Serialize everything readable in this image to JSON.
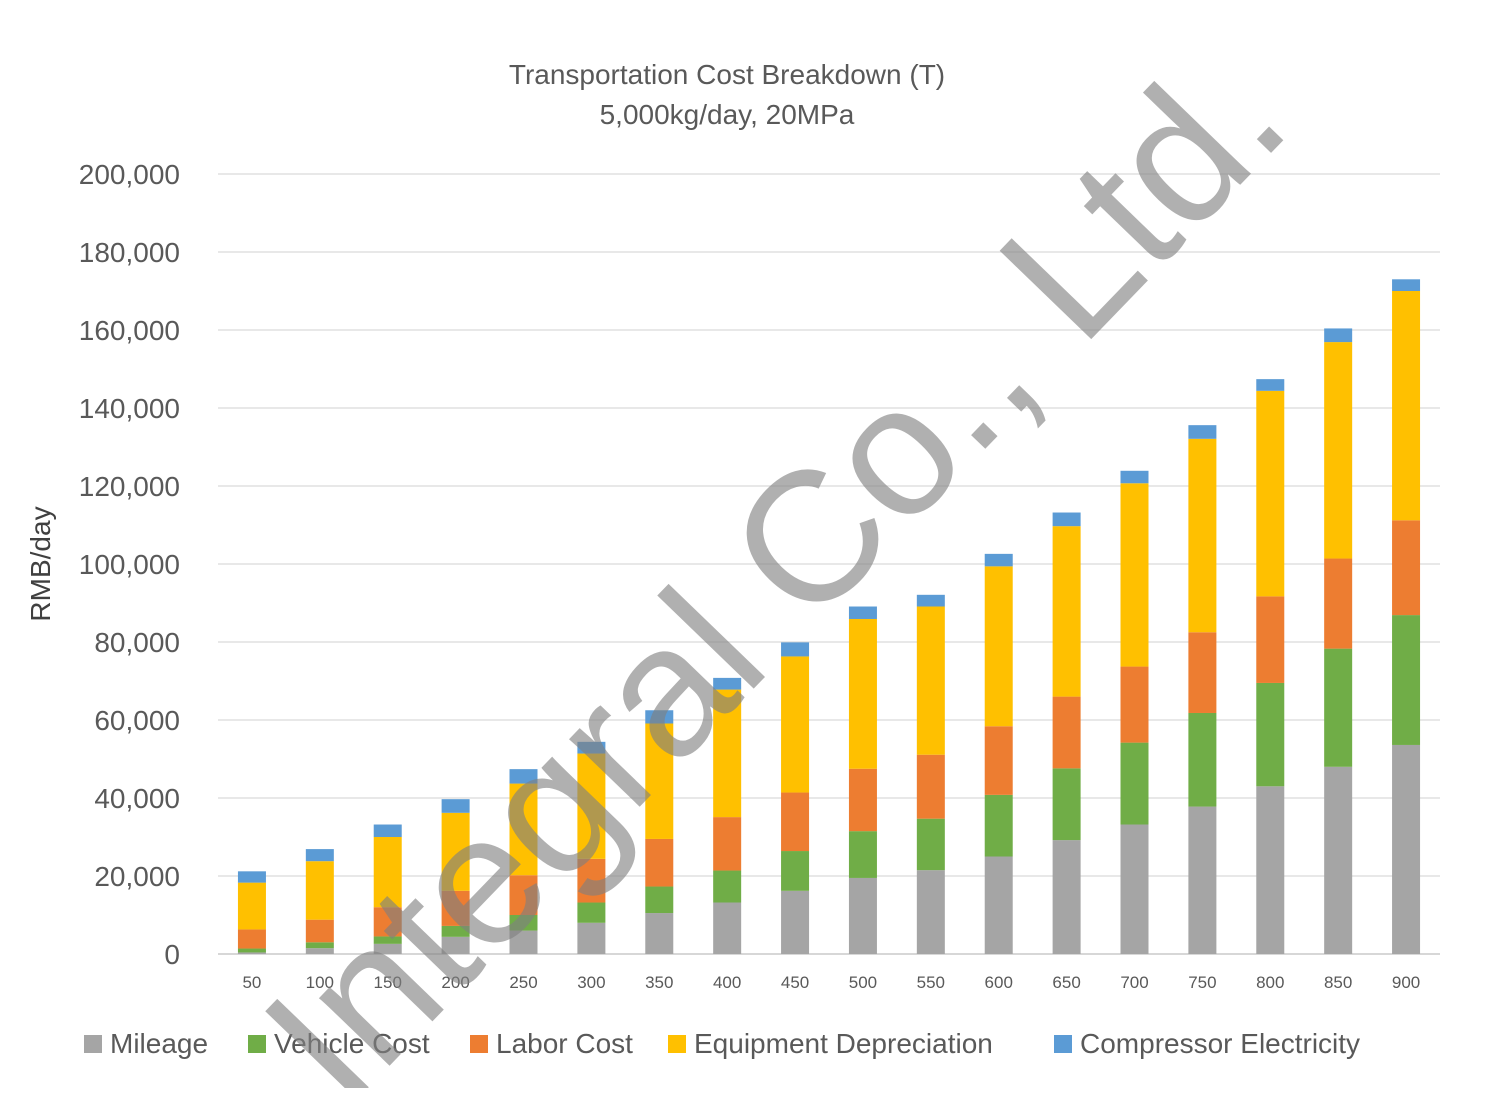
{
  "chart_data": {
    "type": "bar",
    "stacked": true,
    "title": "Transportation Cost Breakdown (T)",
    "subtitle": "5,000kg/day, 20MPa",
    "xlabel": "",
    "ylabel": "RMB/day",
    "ylim": [
      0,
      200000
    ],
    "yticks": [
      0,
      20000,
      40000,
      60000,
      80000,
      100000,
      120000,
      140000,
      160000,
      180000,
      200000
    ],
    "ytick_labels": [
      "0",
      "20,000",
      "40,000",
      "60,000",
      "80,000",
      "100,000",
      "120,000",
      "140,000",
      "160,000",
      "180,000",
      "200,000"
    ],
    "grid": true,
    "legend_position": "bottom",
    "categories": [
      "50",
      "100",
      "150",
      "200",
      "250",
      "300",
      "350",
      "400",
      "450",
      "500",
      "550",
      "600",
      "650",
      "700",
      "750",
      "800",
      "850",
      "900"
    ],
    "series": [
      {
        "name": "Mileage",
        "color": "#a5a5a5",
        "values": [
          400,
          1500,
          2600,
          4400,
          6000,
          8000,
          10500,
          13200,
          16200,
          19500,
          21500,
          25000,
          29200,
          33200,
          37800,
          43000,
          48000,
          53600
        ]
      },
      {
        "name": "Vehicle Cost",
        "color": "#70ad47",
        "values": [
          1000,
          1500,
          1900,
          2800,
          4000,
          5200,
          6800,
          8200,
          10200,
          12000,
          13200,
          15800,
          18400,
          21000,
          24000,
          26500,
          30300,
          33300
        ]
      },
      {
        "name": "Labor Cost",
        "color": "#ed7d31",
        "values": [
          4900,
          5800,
          7500,
          9000,
          10200,
          11200,
          12200,
          13700,
          15000,
          16000,
          16400,
          17600,
          18400,
          19500,
          20700,
          22200,
          23100,
          24300
        ]
      },
      {
        "name": "Equipment Depreciation",
        "color": "#ffc000",
        "values": [
          12000,
          15000,
          18000,
          20000,
          23500,
          27000,
          29600,
          32700,
          34900,
          38400,
          38000,
          41000,
          43700,
          47000,
          49600,
          52700,
          55500,
          58800
        ]
      },
      {
        "name": "Compressor Electricity",
        "color": "#5b9bd5",
        "values": [
          2900,
          3100,
          3200,
          3500,
          3700,
          3000,
          3400,
          3000,
          3600,
          3200,
          3000,
          3200,
          3500,
          3200,
          3500,
          3000,
          3500,
          3000
        ]
      }
    ]
  },
  "watermark": "Integral Co., Ltd."
}
